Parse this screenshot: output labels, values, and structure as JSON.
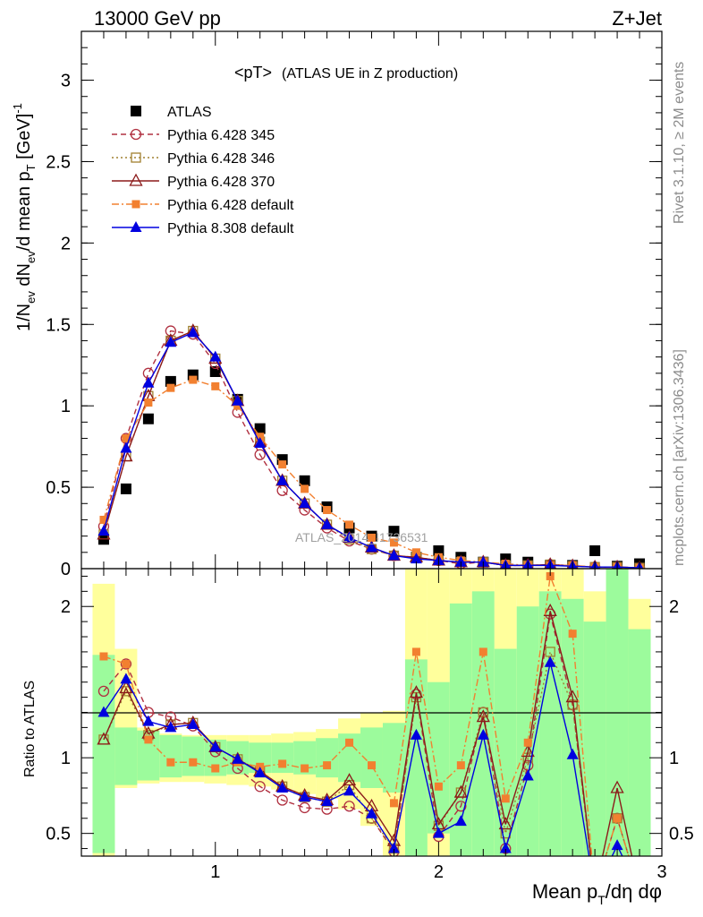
{
  "header": {
    "left": "13000 GeV pp",
    "right": "Z+Jet"
  },
  "side_text": {
    "top": "Rivet 3.1.10, ≥ 2M events",
    "bottom": "mcplots.cern.ch [arXiv:1306.3436]"
  },
  "watermark": "ATLAS_2014_I1736531",
  "colors": {
    "band_inner": "#9cfb9c",
    "band_outer": "#ffff9c",
    "atlas": "#000000",
    "p345": "#b03040",
    "p346": "#a08030",
    "p370": "#8b1a1a",
    "p6def": "#f28030",
    "p8def": "#0000e0"
  },
  "chart_data": [
    {
      "type": "scatter",
      "panel": "main",
      "title_main": "<pT>",
      "title_sub": "(ATLAS UE in Z production)",
      "ylabel": "1/N_ev dN_ev/d mean p_T [GeV]^-1",
      "ylim": [
        0,
        3.3
      ],
      "xlim": [
        0.4,
        3.0
      ],
      "y_ticks": [
        0,
        0.5,
        1,
        1.5,
        2,
        2.5,
        3
      ],
      "y_tick_labels": [
        "0",
        "0.5",
        "1",
        "1.5",
        "2",
        "2.5",
        "3"
      ],
      "x": [
        0.5,
        0.6,
        0.7,
        0.8,
        0.9,
        1.0,
        1.1,
        1.2,
        1.3,
        1.4,
        1.5,
        1.6,
        1.7,
        1.8,
        1.9,
        2.0,
        2.1,
        2.2,
        2.3,
        2.4,
        2.5,
        2.6,
        2.7,
        2.8,
        2.9
      ],
      "series": [
        {
          "name": "ATLAS",
          "key": "atlas",
          "marker": "filled-square",
          "line": "none",
          "values": [
            0.18,
            0.49,
            0.92,
            1.15,
            1.19,
            1.21,
            1.04,
            0.86,
            0.67,
            0.54,
            0.38,
            0.25,
            0.2,
            0.23,
            0.07,
            0.11,
            0.07,
            0.04,
            0.06,
            0.04,
            0.02,
            0.02,
            0.11,
            0.015,
            0.03
          ]
        },
        {
          "name": "Pythia 6.428 345",
          "key": "p345",
          "marker": "open-circle",
          "line": "dashed",
          "values": [
            0.26,
            0.8,
            1.2,
            1.46,
            1.44,
            1.26,
            0.96,
            0.7,
            0.48,
            0.36,
            0.25,
            0.17,
            0.12,
            0.08,
            0.07,
            0.05,
            0.03,
            0.04,
            0.02,
            0.02,
            0.025,
            0.018,
            0.01,
            0.01,
            0.005
          ]
        },
        {
          "name": "Pythia 6.428 346",
          "key": "p346",
          "marker": "open-square",
          "line": "dotted",
          "values": [
            0.21,
            0.69,
            1.06,
            1.4,
            1.46,
            1.29,
            1.03,
            0.78,
            0.54,
            0.4,
            0.27,
            0.18,
            0.12,
            0.08,
            0.07,
            0.05,
            0.04,
            0.04,
            0.02,
            0.02,
            0.025,
            0.016,
            0.01,
            0.01,
            0.005
          ]
        },
        {
          "name": "Pythia 6.428 370",
          "key": "p370",
          "marker": "open-triangle",
          "line": "solid",
          "values": [
            0.21,
            0.69,
            1.06,
            1.4,
            1.46,
            1.29,
            1.03,
            0.78,
            0.54,
            0.4,
            0.27,
            0.19,
            0.13,
            0.08,
            0.07,
            0.05,
            0.04,
            0.04,
            0.02,
            0.02,
            0.025,
            0.017,
            0.01,
            0.01,
            0.005
          ]
        },
        {
          "name": "Pythia 6.428 default",
          "key": "p6def",
          "marker": "filled-square-small",
          "line": "dashdot",
          "values": [
            0.3,
            0.8,
            1.02,
            1.11,
            1.16,
            1.12,
            1.0,
            0.81,
            0.64,
            0.49,
            0.36,
            0.27,
            0.19,
            0.16,
            0.1,
            0.07,
            0.05,
            0.04,
            0.03,
            0.02,
            0.02,
            0.02,
            0.01,
            0.01,
            0.005
          ]
        },
        {
          "name": "Pythia 8.308 default",
          "key": "p8def",
          "marker": "filled-triangle",
          "line": "solid",
          "values": [
            0.23,
            0.74,
            1.14,
            1.39,
            1.45,
            1.3,
            1.03,
            0.77,
            0.54,
            0.4,
            0.27,
            0.19,
            0.13,
            0.08,
            0.06,
            0.05,
            0.04,
            0.04,
            0.02,
            0.02,
            0.02,
            0.015,
            0.01,
            0.01,
            0.005
          ]
        }
      ],
      "legend_position": "top-left"
    },
    {
      "type": "line",
      "panel": "ratio",
      "ylabel": "Ratio to ATLAS",
      "xlabel": "Mean p_T/dη dφ",
      "ylim": [
        0.35,
        2.25
      ],
      "xlim": [
        0.4,
        3.0
      ],
      "reference_line": 1,
      "y_ticks": [
        0.5,
        1,
        2
      ],
      "y_tick_labels": [
        "0.5",
        "1",
        "2"
      ],
      "x_ticks": [
        1,
        2,
        3
      ],
      "x_tick_labels": [
        "1",
        "2",
        "3"
      ],
      "x": [
        0.5,
        0.6,
        0.7,
        0.8,
        0.9,
        1.0,
        1.1,
        1.2,
        1.3,
        1.4,
        1.5,
        1.6,
        1.7,
        1.8,
        1.9,
        2.0,
        2.1,
        2.2,
        2.3,
        2.4,
        2.5,
        2.6,
        2.7,
        2.8,
        2.9
      ],
      "bands": [
        {
          "x0": 0.45,
          "x1": 0.55,
          "inner": [
            0.37,
            1.68
          ],
          "outer": [
            0.35,
            2.15
          ]
        },
        {
          "x0": 0.55,
          "x1": 0.65,
          "inner": [
            0.82,
            1.2
          ],
          "outer": [
            0.8,
            1.72
          ]
        },
        {
          "x0": 0.65,
          "x1": 0.75,
          "inner": [
            0.85,
            1.18
          ],
          "outer": [
            0.83,
            1.2
          ]
        },
        {
          "x0": 0.75,
          "x1": 0.85,
          "inner": [
            0.87,
            1.15
          ],
          "outer": [
            0.84,
            1.16
          ]
        },
        {
          "x0": 0.85,
          "x1": 0.95,
          "inner": [
            0.88,
            1.14
          ],
          "outer": [
            0.84,
            1.15
          ]
        },
        {
          "x0": 0.95,
          "x1": 1.05,
          "inner": [
            0.88,
            1.12
          ],
          "outer": [
            0.83,
            1.15
          ]
        },
        {
          "x0": 1.05,
          "x1": 1.15,
          "inner": [
            0.89,
            1.11
          ],
          "outer": [
            0.82,
            1.15
          ]
        },
        {
          "x0": 1.15,
          "x1": 1.25,
          "inner": [
            0.9,
            1.1
          ],
          "outer": [
            0.81,
            1.15
          ]
        },
        {
          "x0": 1.25,
          "x1": 1.35,
          "inner": [
            0.9,
            1.1
          ],
          "outer": [
            0.79,
            1.16
          ]
        },
        {
          "x0": 1.35,
          "x1": 1.45,
          "inner": [
            0.89,
            1.11
          ],
          "outer": [
            0.76,
            1.17
          ]
        },
        {
          "x0": 1.45,
          "x1": 1.55,
          "inner": [
            0.87,
            1.13
          ],
          "outer": [
            0.73,
            1.19
          ]
        },
        {
          "x0": 1.55,
          "x1": 1.65,
          "inner": [
            0.84,
            1.16
          ],
          "outer": [
            0.66,
            1.26
          ]
        },
        {
          "x0": 1.65,
          "x1": 1.75,
          "inner": [
            0.8,
            1.2
          ],
          "outer": [
            0.55,
            1.3
          ]
        },
        {
          "x0": 1.75,
          "x1": 1.85,
          "inner": [
            0.77,
            1.23
          ],
          "outer": [
            0.35,
            1.31
          ]
        },
        {
          "x0": 1.85,
          "x1": 1.95,
          "inner": [
            0.35,
            1.65
          ],
          "outer": [
            0.35,
            2.25
          ]
        },
        {
          "x0": 1.95,
          "x1": 2.05,
          "inner": [
            0.5,
            1.5
          ],
          "outer": [
            0.35,
            2.25
          ]
        },
        {
          "x0": 2.05,
          "x1": 2.15,
          "inner": [
            0.35,
            2.02
          ],
          "outer": [
            0.35,
            2.25
          ]
        },
        {
          "x0": 2.15,
          "x1": 2.25,
          "inner": [
            0.35,
            2.1
          ],
          "outer": [
            0.35,
            2.25
          ]
        },
        {
          "x0": 2.25,
          "x1": 2.35,
          "inner": [
            0.35,
            1.72
          ],
          "outer": [
            0.35,
            2.25
          ]
        },
        {
          "x0": 2.35,
          "x1": 2.45,
          "inner": [
            0.35,
            2.0
          ],
          "outer": [
            0.35,
            2.25
          ]
        },
        {
          "x0": 2.45,
          "x1": 2.55,
          "inner": [
            0.35,
            2.1
          ],
          "outer": [
            0.35,
            2.25
          ]
        },
        {
          "x0": 2.55,
          "x1": 2.65,
          "inner": [
            0.35,
            2.05
          ],
          "outer": [
            0.35,
            2.25
          ]
        },
        {
          "x0": 2.65,
          "x1": 2.75,
          "inner": [
            0.35,
            1.9
          ],
          "outer": [
            0.35,
            2.1
          ]
        },
        {
          "x0": 2.75,
          "x1": 2.85,
          "inner": [
            0.35,
            2.25
          ],
          "outer": [
            0.35,
            2.25
          ]
        },
        {
          "x0": 2.85,
          "x1": 2.95,
          "inner": [
            0.35,
            1.85
          ],
          "outer": [
            0.35,
            2.05
          ]
        }
      ],
      "series": [
        {
          "name": "Pythia 6.428 345",
          "key": "p345",
          "values": [
            1.44,
            1.62,
            1.3,
            1.27,
            1.21,
            1.04,
            0.93,
            0.81,
            0.72,
            0.67,
            0.66,
            0.68,
            0.6,
            0.38,
            1.42,
            0.48,
            0.68,
            1.3,
            0.4,
            0.95,
            1.95,
            1.35,
            null,
            0.6,
            null
          ]
        },
        {
          "name": "Pythia 6.428 346",
          "key": "p346",
          "values": [
            1.12,
            1.44,
            1.15,
            1.22,
            1.23,
            1.07,
            0.99,
            0.91,
            0.81,
            0.74,
            0.71,
            0.82,
            0.6,
            0.4,
            1.4,
            0.55,
            0.77,
            1.3,
            0.5,
            1.0,
            1.7,
            1.35,
            null,
            0.6,
            null
          ]
        },
        {
          "name": "Pythia 6.428 370",
          "key": "p370",
          "values": [
            1.12,
            1.46,
            1.16,
            1.22,
            1.23,
            1.07,
            0.99,
            0.91,
            0.81,
            0.75,
            0.72,
            0.85,
            0.68,
            0.45,
            1.43,
            0.56,
            0.77,
            1.27,
            0.56,
            1.04,
            1.97,
            1.4,
            null,
            0.8,
            null
          ]
        },
        {
          "name": "Pythia 6.428 default",
          "key": "p6def",
          "values": [
            1.67,
            1.62,
            1.12,
            0.97,
            0.97,
            0.93,
            0.97,
            0.94,
            0.96,
            0.93,
            0.95,
            1.1,
            0.95,
            0.7,
            1.7,
            0.81,
            0.95,
            1.7,
            0.73,
            1.1,
            2.2,
            1.82,
            null,
            0.6,
            null
          ]
        },
        {
          "name": "Pythia 8.308 default",
          "key": "p8def",
          "values": [
            1.3,
            1.52,
            1.24,
            1.2,
            1.22,
            1.07,
            0.99,
            0.9,
            0.8,
            0.74,
            0.71,
            0.78,
            0.63,
            0.4,
            1.15,
            0.5,
            0.58,
            1.15,
            0.4,
            0.88,
            1.63,
            1.02,
            null,
            0.42,
            null
          ]
        }
      ]
    }
  ]
}
